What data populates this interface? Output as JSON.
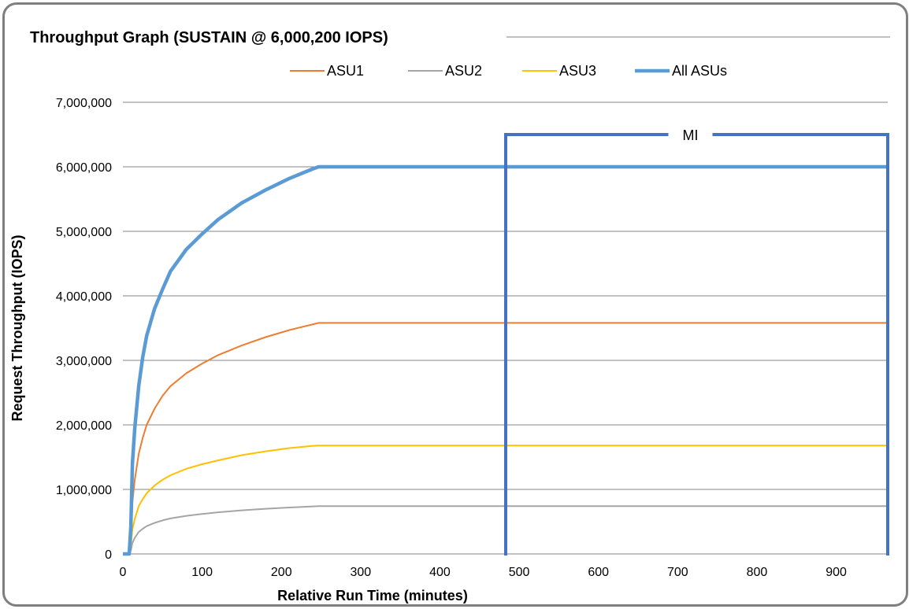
{
  "chart_data": {
    "type": "line",
    "title": "Throughput Graph (SUSTAIN @ 6,000,200 IOPS)",
    "xlabel": "Relative Run Time (minutes)",
    "ylabel": "Request Throughput (IOPS)",
    "xlim": [
      0,
      960
    ],
    "ylim": [
      0,
      7000000
    ],
    "x_ticks": [
      0,
      100,
      200,
      300,
      400,
      500,
      600,
      700,
      800,
      900
    ],
    "x_tick_labels": [
      "0",
      "100",
      "200",
      "300",
      "400",
      "500",
      "600",
      "700",
      "800",
      "900"
    ],
    "y_ticks": [
      0,
      1000000,
      2000000,
      3000000,
      4000000,
      5000000,
      6000000,
      7000000
    ],
    "y_tick_labels": [
      "0",
      "1,000,000",
      "2,000,000",
      "3,000,000",
      "4,000,000",
      "5,000,000",
      "6,000,000",
      "7,000,000"
    ],
    "grid": "horizontal",
    "legend_position": "top",
    "series": [
      {
        "name": "ASU1",
        "color": "#ed7d31",
        "x": [
          0,
          8,
          10,
          12,
          15,
          20,
          25,
          30,
          40,
          50,
          60,
          80,
          100,
          120,
          150,
          180,
          210,
          240,
          247,
          300,
          400,
          500,
          600,
          700,
          800,
          900,
          965
        ],
        "y": [
          0,
          0,
          250000,
          800000,
          1150000,
          1550000,
          1800000,
          2000000,
          2250000,
          2450000,
          2600000,
          2800000,
          2950000,
          3080000,
          3230000,
          3360000,
          3470000,
          3560000,
          3580000,
          3580000,
          3580000,
          3580000,
          3580000,
          3580000,
          3580000,
          3580000,
          3580000
        ]
      },
      {
        "name": "ASU2",
        "color": "#a5a5a5",
        "x": [
          0,
          8,
          10,
          12,
          15,
          20,
          25,
          30,
          40,
          50,
          60,
          80,
          100,
          120,
          150,
          180,
          210,
          240,
          247,
          300,
          400,
          500,
          600,
          700,
          800,
          900,
          965
        ],
        "y": [
          0,
          0,
          50000,
          170000,
          250000,
          340000,
          390000,
          430000,
          480000,
          520000,
          550000,
          590000,
          620000,
          645000,
          675000,
          700000,
          720000,
          737000,
          740000,
          740000,
          740000,
          740000,
          740000,
          740000,
          740000,
          740000,
          740000
        ]
      },
      {
        "name": "ASU3",
        "color": "#ffc000",
        "x": [
          0,
          8,
          10,
          12,
          15,
          20,
          25,
          30,
          40,
          50,
          60,
          80,
          100,
          120,
          150,
          180,
          210,
          240,
          247,
          300,
          400,
          500,
          600,
          700,
          800,
          900,
          965
        ],
        "y": [
          0,
          0,
          120000,
          380000,
          540000,
          740000,
          850000,
          940000,
          1060000,
          1150000,
          1220000,
          1320000,
          1390000,
          1450000,
          1530000,
          1590000,
          1640000,
          1675000,
          1680000,
          1680000,
          1680000,
          1680000,
          1680000,
          1680000,
          1680000,
          1680000,
          1680000
        ]
      },
      {
        "name": "All ASUs",
        "color": "#5b9bd5",
        "x": [
          0,
          8,
          10,
          12,
          15,
          20,
          25,
          30,
          40,
          50,
          60,
          80,
          100,
          120,
          150,
          180,
          210,
          240,
          247,
          300,
          400,
          500,
          600,
          700,
          800,
          900,
          965
        ],
        "y": [
          0,
          0,
          420000,
          1400000,
          1950000,
          2600000,
          3050000,
          3380000,
          3800000,
          4100000,
          4380000,
          4720000,
          4960000,
          5180000,
          5440000,
          5640000,
          5820000,
          5970000,
          6000000,
          6000000,
          6000000,
          6000000,
          6000000,
          6000000,
          6000000,
          6000000,
          6000000
        ]
      }
    ],
    "annotations": [
      {
        "label": "MI",
        "type": "bracket",
        "x_start": 483,
        "x_end": 965,
        "y_top": 6500000,
        "color": "#4472c4"
      }
    ]
  }
}
